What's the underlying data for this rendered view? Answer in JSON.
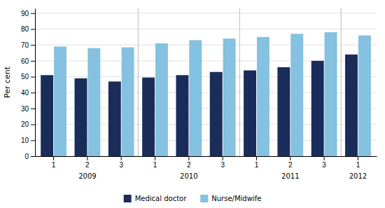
{
  "chart_data": {
    "type": "bar",
    "ylabel": "Per cent",
    "categories": [
      "1",
      "2",
      "3",
      "1",
      "2",
      "3",
      "1",
      "2",
      "3",
      "1"
    ],
    "annotations": [
      "2009",
      "2010",
      "2011",
      "2012"
    ],
    "series": [
      {
        "name": "Medical doctor",
        "color": "#1a2d5a",
        "values": [
          51,
          49,
          47,
          49.5,
          51,
          53,
          54,
          56,
          60,
          64
        ]
      },
      {
        "name": "Nurse/Midwife",
        "color": "#85c1e0",
        "values": [
          69,
          68,
          68.5,
          71,
          73,
          74,
          75,
          77,
          78,
          76
        ]
      }
    ],
    "ylim": [
      0,
      93
    ],
    "yticks": [
      0,
      10,
      20,
      30,
      40,
      50,
      60,
      70,
      80,
      90
    ],
    "grid": true,
    "legend": "bottom"
  }
}
